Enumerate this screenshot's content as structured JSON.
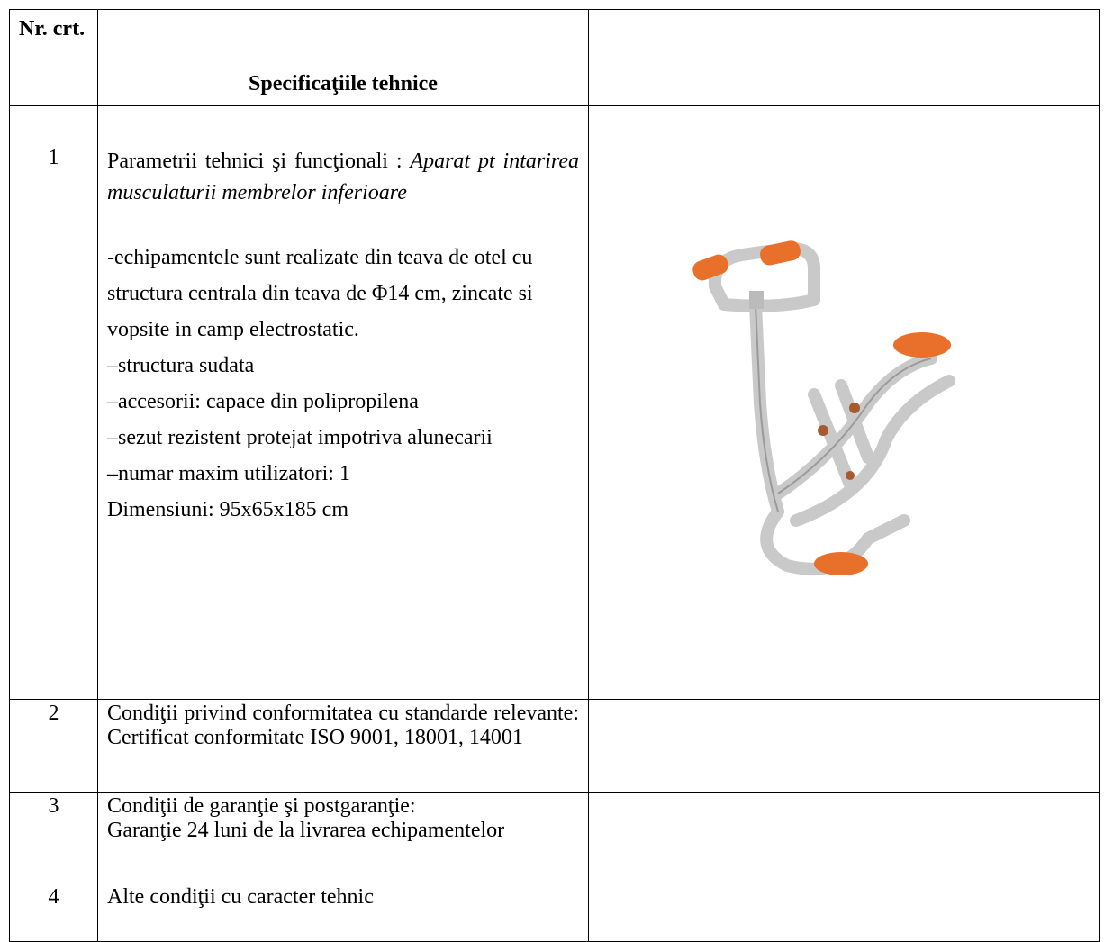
{
  "header": {
    "number": "Nr. crt.",
    "spec": "Specificaţiile tehnice"
  },
  "rows": [
    {
      "number": "1",
      "label": "Parametrii tehnici şi funcţionali :",
      "value": "Aparat pt intarirea musculaturii membrelor inferioare",
      "details": [
        "-echipamentele sunt realizate din teava de otel cu structura centrala din teava de Φ14 cm, zincate si vopsite in camp electrostatic.",
        "–structura sudata",
        "–accesorii: capace din polipropilena",
        "–sezut rezistent protejat impotriva alunecarii",
        "–numar maxim utilizatori: 1",
        "Dimensiuni: 95x65x185 cm"
      ]
    },
    {
      "number": "2",
      "text": "Condiţii privind conformitatea cu standarde relevante: Certificat conformitate ISO 9001, 18001, 14001"
    },
    {
      "number": "3",
      "label": "Condiţii de garanţie şi postgaranţie:",
      "text": "Garanţie 24 luni de la livrarea echipamentelor"
    },
    {
      "number": "4",
      "text": "Alte condiţii cu caracter tehnic"
    }
  ]
}
